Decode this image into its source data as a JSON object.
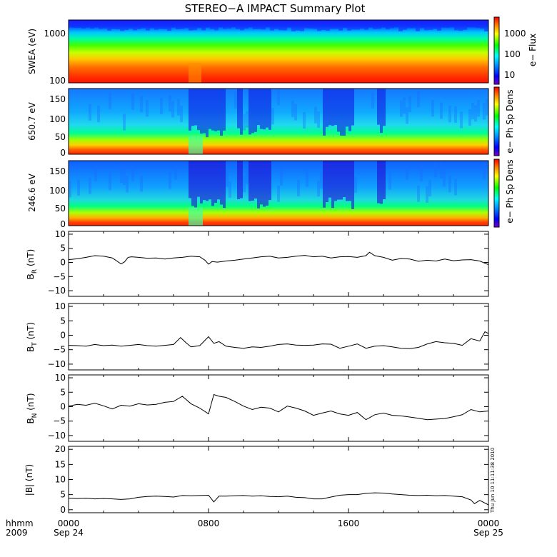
{
  "title": "STEREO−A IMPACT Summary Plot",
  "footer": {
    "time_label": "hhmm",
    "year_label": "2009",
    "stamp": "Thu Jun 10 11:11:38 2010"
  },
  "colors": {
    "line": "#000000",
    "background": "#ffffff",
    "spectrum_stops": [
      "#7a00c8",
      "#0000ff",
      "#00a0ff",
      "#00ffff",
      "#00ff00",
      "#ffff00",
      "#ff8000",
      "#ff0000"
    ]
  },
  "chart_data": {
    "type": "line",
    "x_axis": {
      "range_hours": [
        0,
        24
      ],
      "ticks": [
        {
          "hour": 0,
          "label": "0000",
          "sublabel": "Sep 24"
        },
        {
          "hour": 8,
          "label": "0800",
          "sublabel": ""
        },
        {
          "hour": 16,
          "label": "1600",
          "sublabel": ""
        },
        {
          "hour": 24,
          "label": "0000",
          "sublabel": "Sep 25"
        }
      ]
    },
    "spectrograms": [
      {
        "id": "swea",
        "type": "heatmap",
        "ylabel": "SWEA (eV)",
        "yscale": "log",
        "yticks": [
          "1000",
          "100"
        ],
        "colorbar_label": "e− Flux",
        "colorbar_ticks": [
          "1000",
          "100",
          "10"
        ]
      },
      {
        "id": "pad650",
        "type": "heatmap",
        "ylabel": "650.7 eV",
        "yticks": [
          "150",
          "100",
          "50",
          "0"
        ],
        "colorbar_label": "e− Ph Sp Dens"
      },
      {
        "id": "pad246",
        "type": "heatmap",
        "ylabel": "246.6 eV",
        "yticks": [
          "150",
          "100",
          "50",
          "0"
        ],
        "colorbar_label": "e− Ph Sp Dens"
      }
    ],
    "series": [
      {
        "id": "br",
        "ylabel": "B_R (nT)",
        "ylim": [
          -12,
          11
        ],
        "yticks": [
          "10",
          "5",
          "0",
          "−5",
          "−10"
        ],
        "x": [
          0,
          0.5,
          1,
          1.5,
          2,
          2.5,
          3,
          3.2,
          3.4,
          3.6,
          4,
          4.5,
          5,
          5.5,
          6,
          6.5,
          7,
          7.5,
          7.8,
          8,
          8.2,
          8.5,
          9,
          9.5,
          10,
          10.5,
          11,
          11.5,
          12,
          12.5,
          13,
          13.5,
          14,
          14.5,
          15,
          15.5,
          16,
          16.5,
          17,
          17.2,
          17.5,
          18,
          18.5,
          19,
          19.5,
          20,
          20.5,
          21,
          21.5,
          22,
          22.5,
          23,
          23.5,
          24
        ],
        "y": [
          1.0,
          1.3,
          1.8,
          2.4,
          2.2,
          1.6,
          -0.5,
          0.2,
          1.8,
          2.0,
          1.8,
          1.5,
          1.6,
          1.2,
          1.6,
          1.8,
          2.2,
          2.0,
          0.8,
          -0.6,
          0.3,
          0.1,
          0.5,
          0.8,
          1.2,
          1.6,
          2.0,
          2.2,
          1.6,
          1.8,
          2.2,
          2.5,
          2.0,
          2.2,
          1.6,
          2.0,
          2.1,
          1.8,
          2.4,
          3.6,
          2.4,
          1.8,
          0.8,
          1.4,
          1.2,
          0.4,
          0.8,
          0.5,
          1.2,
          0.6,
          0.9,
          1.0,
          0.5,
          -0.8
        ]
      },
      {
        "id": "bt",
        "ylabel": "B_T (nT)",
        "ylim": [
          -12,
          11
        ],
        "yticks": [
          "10",
          "5",
          "0",
          "−5",
          "−10"
        ],
        "x": [
          0,
          0.5,
          1,
          1.5,
          2,
          2.5,
          3,
          3.5,
          4,
          4.5,
          5,
          5.5,
          6,
          6.4,
          6.7,
          7,
          7.5,
          8,
          8.3,
          8.6,
          9,
          9.5,
          10,
          10.5,
          11,
          11.5,
          12,
          12.5,
          13,
          13.5,
          14,
          14.5,
          15,
          15.5,
          16,
          16.5,
          17,
          17.5,
          18,
          18.5,
          19,
          19.5,
          20,
          20.5,
          21,
          21.5,
          22,
          22.5,
          23,
          23.5,
          23.8,
          24
        ],
        "y": [
          -3.5,
          -3.6,
          -3.8,
          -3.2,
          -3.6,
          -3.4,
          -3.8,
          -3.5,
          -3.2,
          -3.6,
          -3.8,
          -3.5,
          -3.2,
          -0.8,
          -2.5,
          -4.0,
          -3.6,
          -0.5,
          -2.8,
          -2.2,
          -3.8,
          -4.2,
          -4.5,
          -4.0,
          -4.2,
          -3.8,
          -3.2,
          -3.0,
          -3.4,
          -3.5,
          -3.4,
          -3.0,
          -3.1,
          -4.5,
          -3.8,
          -3.0,
          -4.5,
          -3.8,
          -3.6,
          -4.0,
          -4.5,
          -4.6,
          -4.2,
          -3.0,
          -2.2,
          -2.6,
          -2.8,
          -3.5,
          -1.2,
          -2.0,
          1.2,
          0.6
        ]
      },
      {
        "id": "bn",
        "ylabel": "B_N (nT)",
        "ylim": [
          -12,
          11
        ],
        "yticks": [
          "10",
          "5",
          "0",
          "−5",
          "−10"
        ],
        "x": [
          0,
          0.5,
          1,
          1.5,
          2,
          2.5,
          3,
          3.5,
          4,
          4.5,
          5,
          5.5,
          6,
          6.5,
          7,
          7.5,
          8,
          8.3,
          8.6,
          9,
          9.5,
          10,
          10.5,
          11,
          11.5,
          12,
          12.5,
          13,
          13.5,
          14,
          14.5,
          15,
          15.5,
          16,
          16.5,
          17,
          17.5,
          18,
          18.5,
          19,
          19.5,
          20,
          20.5,
          21,
          21.5,
          22,
          22.5,
          23,
          23.5,
          24
        ],
        "y": [
          0.2,
          0.8,
          0.5,
          1.2,
          0.3,
          -0.8,
          0.5,
          0.2,
          1.0,
          0.6,
          0.8,
          1.5,
          1.8,
          3.6,
          1.0,
          -0.5,
          -2.5,
          4.2,
          3.6,
          3.2,
          1.8,
          0.2,
          -1.0,
          -0.2,
          -0.5,
          -1.8,
          0.2,
          -0.5,
          -1.5,
          -3.0,
          -2.2,
          -1.5,
          -2.5,
          -3.0,
          -2.0,
          -4.5,
          -2.8,
          -2.2,
          -3.0,
          -3.2,
          -3.6,
          -4.0,
          -4.5,
          -4.3,
          -4.1,
          -3.5,
          -2.8,
          -1.0,
          -1.8,
          -1.5
        ]
      },
      {
        "id": "bmag",
        "ylabel": "|B| (nT)",
        "ylim": [
          -1,
          21
        ],
        "yticks": [
          "20",
          "15",
          "10",
          "5",
          "0"
        ],
        "x": [
          0,
          0.5,
          1,
          1.5,
          2,
          2.5,
          3,
          3.5,
          4,
          4.5,
          5,
          5.5,
          6,
          6.5,
          7,
          7.5,
          8,
          8.3,
          8.6,
          9,
          9.5,
          10,
          10.5,
          11,
          11.5,
          12,
          12.5,
          13,
          13.5,
          14,
          14.5,
          15,
          15.5,
          16,
          16.5,
          17,
          17.5,
          18,
          18.5,
          19,
          19.5,
          20,
          20.5,
          21,
          21.5,
          22,
          22.5,
          23,
          23.2,
          23.5,
          24
        ],
        "y": [
          3.8,
          3.7,
          3.8,
          3.6,
          3.7,
          3.6,
          3.4,
          3.6,
          4.1,
          4.4,
          4.5,
          4.4,
          4.2,
          4.7,
          4.6,
          4.7,
          4.8,
          2.6,
          4.5,
          4.5,
          4.6,
          4.7,
          4.5,
          4.6,
          4.4,
          4.3,
          4.5,
          4.1,
          4.0,
          3.6,
          3.6,
          4.2,
          4.8,
          5.0,
          5.0,
          5.4,
          5.6,
          5.5,
          5.2,
          5.0,
          4.8,
          4.7,
          4.8,
          4.6,
          4.7,
          4.5,
          4.3,
          3.2,
          2.0,
          3.1,
          1.6
        ]
      }
    ]
  }
}
